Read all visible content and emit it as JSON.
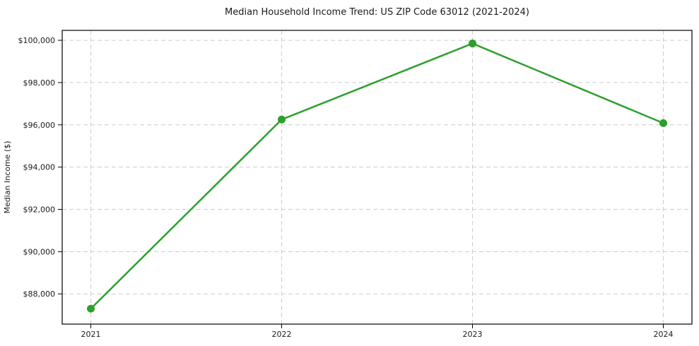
{
  "chart": {
    "title": "Median Household Income Trend: US ZIP Code 63012 (2021-2024)",
    "ylabel": "Median Income ($)"
  },
  "chart_data": {
    "type": "line",
    "title": "Median Household Income Trend: US ZIP Code 63012 (2021-2024)",
    "xlabel": "",
    "ylabel": "Median Income ($)",
    "x": [
      2021,
      2022,
      2023,
      2024
    ],
    "xtick_labels": [
      "2021",
      "2022",
      "2023",
      "2024"
    ],
    "series": [
      {
        "name": "Median Household Income",
        "values": [
          87300,
          96250,
          99850,
          96080
        ]
      }
    ],
    "yticks": [
      88000,
      90000,
      92000,
      94000,
      96000,
      98000,
      100000
    ],
    "ytick_labels": [
      "$88,000",
      "$90,000",
      "$92,000",
      "$94,000",
      "$96,000",
      "$98,000",
      "$100,000"
    ],
    "ylim": [
      86570,
      100470
    ],
    "xlim": [
      2020.85,
      2024.15
    ],
    "grid": true,
    "grid_style": "dashed",
    "legend": "none",
    "line_color": "#2ca02c",
    "marker": "circle",
    "grid_color": "#cccccc",
    "spine_color": "#000000",
    "tick_text_color": "#1a1a1a",
    "background": "#ffffff"
  }
}
